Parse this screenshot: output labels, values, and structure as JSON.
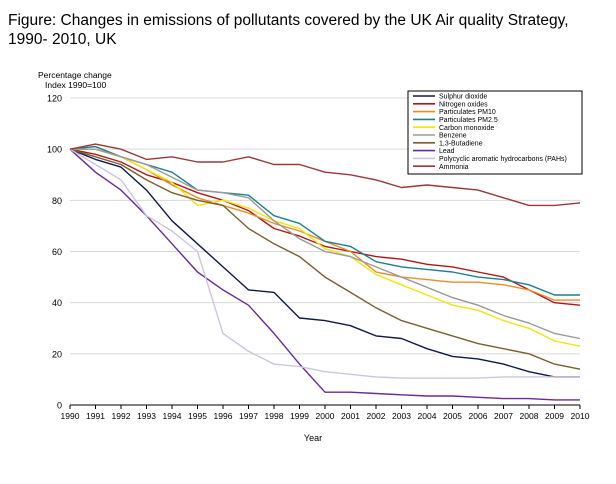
{
  "figure": {
    "title_line1": "Figure: Changes in emissions of pollutants covered by the UK Air quality Strategy,",
    "title_line2": "1990- 2010, UK"
  },
  "chart_data": {
    "type": "line",
    "ylabel_line1": "Percentage change",
    "ylabel_line2": "Index 1990=100",
    "xlabel": "Year",
    "ylim": [
      0,
      120
    ],
    "yticks": [
      0,
      20,
      40,
      60,
      80,
      100,
      120
    ],
    "grid": "horizontal",
    "legend": "top-right",
    "x": [
      "1990",
      "1991",
      "1992",
      "1993",
      "1994",
      "1995",
      "1996",
      "1997",
      "1998",
      "1999",
      "2000",
      "2001",
      "2002",
      "2003",
      "2004",
      "2005",
      "2006",
      "2007",
      "2008",
      "2009",
      "2010"
    ],
    "series": [
      {
        "name": "Sulphur dioxide",
        "color": "#0c1a4a",
        "values": [
          100,
          96,
          93,
          84,
          72,
          63,
          54,
          45,
          44,
          34,
          33,
          31,
          27,
          26,
          22,
          19,
          18,
          16,
          13,
          11,
          11
        ]
      },
      {
        "name": "Nitrogen oxides",
        "color": "#b01818",
        "values": [
          100,
          98,
          95,
          90,
          87,
          83,
          80,
          76,
          69,
          66,
          62,
          60,
          58,
          57,
          55,
          54,
          52,
          50,
          45,
          40,
          39
        ]
      },
      {
        "name": "Particulates PM10",
        "color": "#ea8c2a",
        "values": [
          100,
          101,
          97,
          92,
          86,
          81,
          78,
          75,
          71,
          68,
          64,
          60,
          52,
          50,
          49,
          48,
          48,
          47,
          45,
          41,
          41
        ]
      },
      {
        "name": "Particulates PM2.5",
        "color": "#1d7f8f",
        "values": [
          100,
          101,
          97,
          94,
          91,
          84,
          83,
          82,
          74,
          71,
          64,
          62,
          56,
          54,
          53,
          52,
          50,
          49,
          47,
          43,
          43
        ]
      },
      {
        "name": "Carbon monoxide",
        "color": "#f1e50c",
        "values": [
          100,
          100,
          97,
          92,
          87,
          78,
          80,
          77,
          72,
          69,
          61,
          58,
          51,
          47,
          43,
          39,
          37,
          33,
          30,
          25,
          23
        ]
      },
      {
        "name": "Benzene",
        "color": "#9a9a9a",
        "values": [
          100,
          100,
          97,
          94,
          89,
          84,
          83,
          81,
          72,
          65,
          60,
          58,
          54,
          50,
          46,
          42,
          39,
          35,
          32,
          28,
          26
        ]
      },
      {
        "name": "1,3-Butadiene",
        "color": "#7b5f2e",
        "values": [
          100,
          97,
          94,
          88,
          83,
          80,
          78,
          69,
          63,
          58,
          50,
          44,
          38,
          33,
          30,
          27,
          24,
          22,
          20,
          16,
          14
        ]
      },
      {
        "name": "Lead",
        "color": "#6a2a99",
        "values": [
          100,
          91,
          84,
          74,
          63,
          52,
          45,
          39,
          28,
          16,
          5,
          5,
          4.5,
          4,
          3.5,
          3.5,
          3,
          2.5,
          2.5,
          2,
          2
        ]
      },
      {
        "name": "Polycyclic aromatic hydrocarbons (PAHs)",
        "color": "#c9c6e4",
        "values": [
          100,
          94,
          88,
          74,
          68,
          60,
          28,
          21,
          16,
          15,
          13,
          12,
          11,
          10.5,
          10.5,
          10.5,
          10.5,
          11,
          11,
          11,
          11
        ]
      },
      {
        "name": "Ammonia",
        "color": "#9a3838",
        "values": [
          100,
          102,
          100,
          96,
          97,
          95,
          95,
          97,
          94,
          94,
          91,
          90,
          88,
          85,
          86,
          85,
          84,
          81,
          78,
          78,
          79
        ]
      }
    ]
  }
}
